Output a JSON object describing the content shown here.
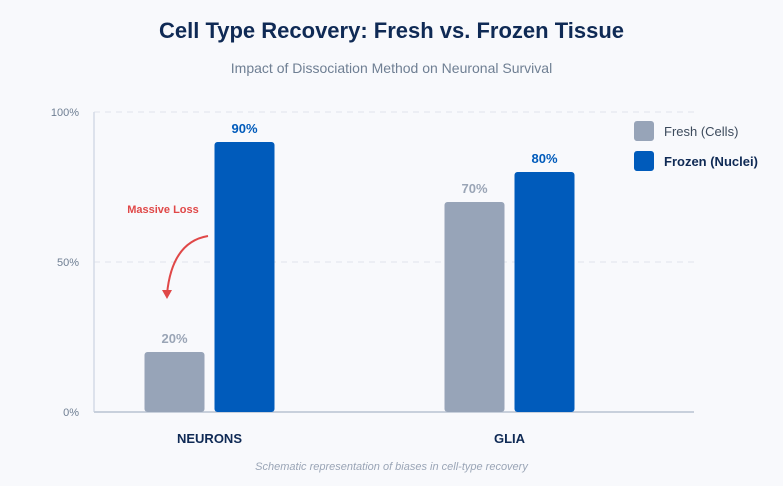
{
  "chart_data": {
    "type": "bar",
    "title": "Cell Type Recovery: Fresh vs. Frozen Tissue",
    "subtitle": "Impact of Dissociation Method on Neuronal Survival",
    "footnote": "Schematic representation of biases in cell-type recovery",
    "categories": [
      "NEURONS",
      "GLIA"
    ],
    "series": [
      {
        "name": "Fresh (Cells)",
        "values": [
          20,
          70
        ],
        "labels": [
          "20%",
          "70%"
        ],
        "color": "#97a4b8"
      },
      {
        "name": "Frozen (Nuclei)",
        "values": [
          90,
          80
        ],
        "labels": [
          "90%",
          "80%"
        ],
        "color": "#005bbb"
      }
    ],
    "ylim": [
      0,
      100
    ],
    "yticks": [
      0,
      50,
      100
    ],
    "ytick_labels": [
      "0%",
      "50%",
      "100%"
    ],
    "grid": true,
    "legend": "top-right",
    "annotation": {
      "text": "Massive Loss",
      "color": "#e04848"
    },
    "colors": {
      "fresh_label": "#9aa5b6",
      "frozen_label": "#005bbb"
    }
  }
}
